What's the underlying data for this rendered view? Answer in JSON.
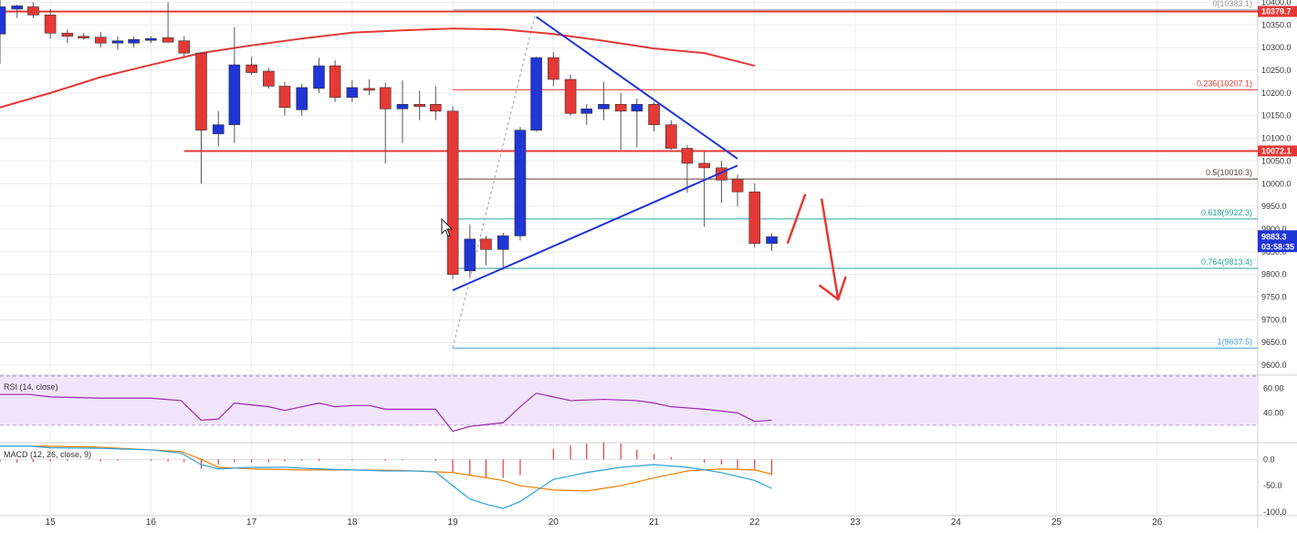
{
  "chart_data": {
    "type": "candlestick",
    "price_axis": {
      "min": 9580,
      "max": 10405,
      "ticks": [
        "10400.0",
        "10350.0",
        "10300.0",
        "10250.0",
        "10200.0",
        "10150.0",
        "10100.0",
        "10050.0",
        "10000.0",
        "9950.0",
        "9900.0",
        "9850.0",
        "9800.0",
        "9750.0",
        "9700.0",
        "9650.0",
        "9600.0"
      ]
    },
    "time_axis": {
      "labels": [
        "15",
        "16",
        "17",
        "18",
        "19",
        "20",
        "21",
        "22",
        "23",
        "24",
        "25",
        "26"
      ],
      "range": [
        14.5,
        27.0
      ]
    },
    "candles": [
      {
        "t": 14.5,
        "o": 10330,
        "h": 10410,
        "l": 10265,
        "c": 10390
      },
      {
        "t": 14.67,
        "o": 10385,
        "h": 10395,
        "l": 10365,
        "c": 10392
      },
      {
        "t": 14.83,
        "o": 10390,
        "h": 10400,
        "l": 10365,
        "c": 10372
      },
      {
        "t": 15.0,
        "o": 10372,
        "h": 10385,
        "l": 10320,
        "c": 10332
      },
      {
        "t": 15.17,
        "o": 10332,
        "h": 10340,
        "l": 10310,
        "c": 10325
      },
      {
        "t": 15.33,
        "o": 10325,
        "h": 10332,
        "l": 10318,
        "c": 10323
      },
      {
        "t": 15.5,
        "o": 10323,
        "h": 10335,
        "l": 10300,
        "c": 10310
      },
      {
        "t": 15.67,
        "o": 10310,
        "h": 10325,
        "l": 10295,
        "c": 10315
      },
      {
        "t": 15.83,
        "o": 10310,
        "h": 10325,
        "l": 10300,
        "c": 10318
      },
      {
        "t": 16.0,
        "o": 10316,
        "h": 10325,
        "l": 10310,
        "c": 10320
      },
      {
        "t": 16.17,
        "o": 10322,
        "h": 10400,
        "l": 10310,
        "c": 10312
      },
      {
        "t": 16.33,
        "o": 10315,
        "h": 10325,
        "l": 10280,
        "c": 10288
      },
      {
        "t": 16.5,
        "o": 10288,
        "h": 10290,
        "l": 10000,
        "c": 10118
      },
      {
        "t": 16.67,
        "o": 10110,
        "h": 10160,
        "l": 10082,
        "c": 10130
      },
      {
        "t": 16.83,
        "o": 10130,
        "h": 10345,
        "l": 10090,
        "c": 10262
      },
      {
        "t": 17.0,
        "o": 10262,
        "h": 10280,
        "l": 10240,
        "c": 10245
      },
      {
        "t": 17.17,
        "o": 10248,
        "h": 10255,
        "l": 10210,
        "c": 10215
      },
      {
        "t": 17.33,
        "o": 10215,
        "h": 10225,
        "l": 10150,
        "c": 10168
      },
      {
        "t": 17.5,
        "o": 10163,
        "h": 10220,
        "l": 10150,
        "c": 10212
      },
      {
        "t": 17.67,
        "o": 10210,
        "h": 10278,
        "l": 10200,
        "c": 10260
      },
      {
        "t": 17.83,
        "o": 10260,
        "h": 10272,
        "l": 10180,
        "c": 10190
      },
      {
        "t": 18.0,
        "o": 10190,
        "h": 10228,
        "l": 10180,
        "c": 10212
      },
      {
        "t": 18.17,
        "o": 10210,
        "h": 10230,
        "l": 10195,
        "c": 10208
      },
      {
        "t": 18.33,
        "o": 10212,
        "h": 10222,
        "l": 10045,
        "c": 10165
      },
      {
        "t": 18.5,
        "o": 10165,
        "h": 10228,
        "l": 10090,
        "c": 10175
      },
      {
        "t": 18.67,
        "o": 10175,
        "h": 10205,
        "l": 10140,
        "c": 10170
      },
      {
        "t": 18.83,
        "o": 10175,
        "h": 10215,
        "l": 10140,
        "c": 10160
      },
      {
        "t": 19.0,
        "o": 10160,
        "h": 10170,
        "l": 9790,
        "c": 9800
      },
      {
        "t": 19.17,
        "o": 9808,
        "h": 9910,
        "l": 9795,
        "c": 9878
      },
      {
        "t": 19.33,
        "o": 9878,
        "h": 9885,
        "l": 9820,
        "c": 9855
      },
      {
        "t": 19.5,
        "o": 9855,
        "h": 9892,
        "l": 9810,
        "c": 9885
      },
      {
        "t": 19.67,
        "o": 9885,
        "h": 10125,
        "l": 9875,
        "c": 10118
      },
      {
        "t": 19.83,
        "o": 10118,
        "h": 10280,
        "l": 10115,
        "c": 10278
      },
      {
        "t": 20.0,
        "o": 10278,
        "h": 10290,
        "l": 10215,
        "c": 10230
      },
      {
        "t": 20.17,
        "o": 10230,
        "h": 10240,
        "l": 10150,
        "c": 10155
      },
      {
        "t": 20.33,
        "o": 10155,
        "h": 10175,
        "l": 10130,
        "c": 10165
      },
      {
        "t": 20.5,
        "o": 10165,
        "h": 10225,
        "l": 10140,
        "c": 10175
      },
      {
        "t": 20.67,
        "o": 10175,
        "h": 10200,
        "l": 10075,
        "c": 10160
      },
      {
        "t": 20.83,
        "o": 10160,
        "h": 10188,
        "l": 10080,
        "c": 10175
      },
      {
        "t": 21.0,
        "o": 10175,
        "h": 10180,
        "l": 10115,
        "c": 10130
      },
      {
        "t": 21.17,
        "o": 10130,
        "h": 10140,
        "l": 10075,
        "c": 10078
      },
      {
        "t": 21.33,
        "o": 10078,
        "h": 10085,
        "l": 9980,
        "c": 10045
      },
      {
        "t": 21.5,
        "o": 10045,
        "h": 10070,
        "l": 9905,
        "c": 10035
      },
      {
        "t": 21.67,
        "o": 10035,
        "h": 10050,
        "l": 9958,
        "c": 10008
      },
      {
        "t": 21.83,
        "o": 10010,
        "h": 10020,
        "l": 9950,
        "c": 9982
      },
      {
        "t": 22.0,
        "o": 9982,
        "h": 10000,
        "l": 9860,
        "c": 9868
      },
      {
        "t": 22.17,
        "o": 9868,
        "h": 9890,
        "l": 9852,
        "c": 9883
      }
    ],
    "moving_average": {
      "color": "#e53935",
      "points": [
        [
          14.45,
          10165
        ],
        [
          15.0,
          10200
        ],
        [
          15.5,
          10235
        ],
        [
          16.0,
          10262
        ],
        [
          16.5,
          10288
        ],
        [
          17.0,
          10305
        ],
        [
          17.5,
          10320
        ],
        [
          18.0,
          10333
        ],
        [
          18.5,
          10338
        ],
        [
          19.0,
          10342
        ],
        [
          19.5,
          10340
        ],
        [
          20.0,
          10330
        ],
        [
          20.5,
          10315
        ],
        [
          21.0,
          10298
        ],
        [
          21.5,
          10288
        ],
        [
          22.0,
          10260
        ]
      ]
    },
    "horizontal_levels": [
      {
        "value": 10379.7,
        "label": "10379.7",
        "color": "#e53935",
        "x_from": 14.45
      },
      {
        "value": 10072.1,
        "label": "10072.1",
        "color": "#e53935",
        "x_from": 16.33
      }
    ],
    "fibonacci": {
      "x_from": 19.0,
      "levels": [
        {
          "value": 10383.1,
          "label": "0(10383.1)",
          "color": "#9e9e9e"
        },
        {
          "value": 10207.1,
          "label": "0.236(10207.1)",
          "color": "#e53935"
        },
        {
          "value": 10010.3,
          "label": "0.5(10010.3)",
          "color": "#5d4037"
        },
        {
          "value": 9922.3,
          "label": "0.618(9922.3)",
          "color": "#26a69a"
        },
        {
          "value": 9813.4,
          "label": "0.764(9813.4)",
          "color": "#26a69a"
        },
        {
          "value": 9637.5,
          "label": "1(9637.5)",
          "color": "#4aa3df"
        }
      ],
      "diagonal": [
        [
          19.0,
          9637.5
        ],
        [
          19.83,
          10383.1
        ]
      ]
    },
    "triangle_lines": [
      [
        [
          19.83,
          10368
        ],
        [
          21.83,
          10055
        ]
      ],
      [
        [
          19.0,
          9765
        ],
        [
          21.83,
          10040
        ]
      ]
    ],
    "annotations": {
      "color": "#e53935",
      "stroke_up": [
        [
          22.33,
          9870
        ],
        [
          22.5,
          9975
        ]
      ],
      "arrow_down": [
        [
          22.83,
          9965
        ],
        [
          22.83,
          9745
        ]
      ]
    },
    "current_price": {
      "label": "9883.3",
      "countdown": "03:58:35",
      "value": 9883.3
    },
    "rsi": {
      "title": "RSI (14, close)",
      "min": 18,
      "max": 70,
      "upper_band": 70,
      "lower_band": 30,
      "ticks": [
        "60.00",
        "40.00"
      ],
      "points": [
        [
          14.45,
          55
        ],
        [
          14.8,
          55
        ],
        [
          15.0,
          53
        ],
        [
          15.5,
          52
        ],
        [
          16.0,
          52
        ],
        [
          16.3,
          50
        ],
        [
          16.5,
          34
        ],
        [
          16.67,
          35
        ],
        [
          16.83,
          48
        ],
        [
          17.17,
          45
        ],
        [
          17.33,
          42
        ],
        [
          17.67,
          48
        ],
        [
          17.83,
          45
        ],
        [
          18.0,
          46
        ],
        [
          18.17,
          46
        ],
        [
          18.33,
          43
        ],
        [
          18.5,
          43
        ],
        [
          18.83,
          43
        ],
        [
          19.0,
          25
        ],
        [
          19.17,
          29
        ],
        [
          19.5,
          32
        ],
        [
          19.67,
          45
        ],
        [
          19.83,
          56
        ],
        [
          20.0,
          53
        ],
        [
          20.17,
          50
        ],
        [
          20.5,
          51
        ],
        [
          20.83,
          50
        ],
        [
          21.0,
          48
        ],
        [
          21.17,
          45
        ],
        [
          21.5,
          43
        ],
        [
          21.83,
          40
        ],
        [
          22.0,
          33
        ],
        [
          22.17,
          34
        ]
      ]
    },
    "macd": {
      "title": "MACD (12, 26, close, 9)",
      "min": -105,
      "max": 30,
      "ticks": [
        "0.0",
        "-50.0",
        "-100.0"
      ],
      "macd_line": [
        [
          14.45,
          25
        ],
        [
          14.8,
          25
        ],
        [
          15.0,
          22
        ],
        [
          15.5,
          21
        ],
        [
          16.0,
          18
        ],
        [
          16.3,
          12
        ],
        [
          16.5,
          -10
        ],
        [
          16.67,
          -18
        ],
        [
          17.0,
          -15
        ],
        [
          17.33,
          -15
        ],
        [
          17.67,
          -18
        ],
        [
          18.0,
          -20
        ],
        [
          18.33,
          -22
        ],
        [
          18.67,
          -22
        ],
        [
          18.83,
          -24
        ],
        [
          19.0,
          -50
        ],
        [
          19.17,
          -75
        ],
        [
          19.33,
          -85
        ],
        [
          19.5,
          -93
        ],
        [
          19.67,
          -80
        ],
        [
          20.0,
          -38
        ],
        [
          20.33,
          -25
        ],
        [
          20.67,
          -15
        ],
        [
          21.0,
          -10
        ],
        [
          21.33,
          -15
        ],
        [
          21.67,
          -25
        ],
        [
          22.0,
          -40
        ],
        [
          22.17,
          -55
        ]
      ],
      "signal_line": [
        [
          14.45,
          25
        ],
        [
          15.0,
          25
        ],
        [
          15.5,
          23
        ],
        [
          16.0,
          18
        ],
        [
          16.3,
          15
        ],
        [
          16.5,
          0
        ],
        [
          16.67,
          -15
        ],
        [
          17.0,
          -18
        ],
        [
          17.5,
          -20
        ],
        [
          18.0,
          -20
        ],
        [
          18.5,
          -21
        ],
        [
          19.0,
          -25
        ],
        [
          19.5,
          -40
        ],
        [
          19.67,
          -50
        ],
        [
          20.0,
          -58
        ],
        [
          20.33,
          -60
        ],
        [
          20.67,
          -50
        ],
        [
          21.0,
          -35
        ],
        [
          21.33,
          -22
        ],
        [
          21.67,
          -18
        ],
        [
          22.0,
          -20
        ],
        [
          22.17,
          -28
        ]
      ],
      "histogram": [
        [
          14.5,
          -5
        ],
        [
          14.67,
          -6
        ],
        [
          14.83,
          -5
        ],
        [
          15.0,
          -4
        ],
        [
          15.17,
          -3
        ],
        [
          15.5,
          -4
        ],
        [
          15.67,
          -3
        ],
        [
          16.0,
          -3
        ],
        [
          16.17,
          -4
        ],
        [
          16.33,
          -5
        ],
        [
          16.5,
          -18
        ],
        [
          16.67,
          -10
        ],
        [
          16.83,
          -6
        ],
        [
          17.0,
          -6
        ],
        [
          17.17,
          -5
        ],
        [
          17.33,
          -4
        ],
        [
          17.5,
          -3
        ],
        [
          17.67,
          -3
        ],
        [
          18.0,
          -2
        ],
        [
          18.33,
          -3
        ],
        [
          18.5,
          -2
        ],
        [
          18.83,
          -3
        ],
        [
          19.0,
          -25
        ],
        [
          19.17,
          -30
        ],
        [
          19.33,
          -35
        ],
        [
          19.5,
          -35
        ],
        [
          19.67,
          -30
        ],
        [
          20.0,
          20
        ],
        [
          20.17,
          26
        ],
        [
          20.33,
          30
        ],
        [
          20.5,
          32
        ],
        [
          20.67,
          30
        ],
        [
          20.83,
          18
        ],
        [
          21.0,
          10
        ],
        [
          21.17,
          4
        ],
        [
          21.5,
          -6
        ],
        [
          21.67,
          -10
        ],
        [
          21.83,
          -18
        ],
        [
          22.0,
          -20
        ],
        [
          22.17,
          -30
        ]
      ]
    },
    "colors": {
      "bull": "#1f35d6",
      "bear": "#e53935",
      "grid": "#ececec",
      "axis_text": "#333333",
      "rsi_band_fill": "#f1e4fb",
      "rsi_line": "#9c27b0",
      "macd_line": "#29a3e3",
      "signal_line": "#f57c00",
      "hist_pos": "#e53935",
      "hist_neg": "#e53935",
      "trendline": "#1f35d6",
      "price_tag_bg": "#1f35d6",
      "level_tag_bg": "#e53935"
    }
  }
}
